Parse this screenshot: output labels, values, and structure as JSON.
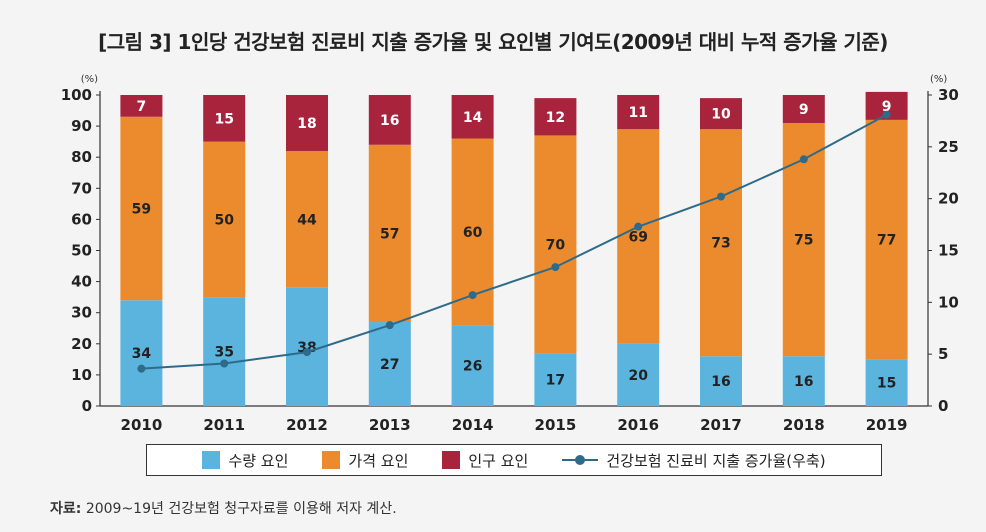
{
  "title": "[그림 3] 1인당 건강보험 진료비 지출 증가율 및 요인별 기여도(2009년 대비 누적 증가율 기준)",
  "chart_data": {
    "type": "bar",
    "stacked": true,
    "categories": [
      "2010",
      "2011",
      "2012",
      "2013",
      "2014",
      "2015",
      "2016",
      "2017",
      "2018",
      "2019"
    ],
    "series": [
      {
        "name": "수량 요인",
        "color": "#5bb4de",
        "values": [
          34,
          35,
          38,
          27,
          26,
          17,
          20,
          16,
          16,
          15
        ]
      },
      {
        "name": "가격 요인",
        "color": "#ec8b2e",
        "values": [
          59,
          50,
          44,
          57,
          60,
          70,
          69,
          73,
          75,
          77
        ]
      },
      {
        "name": "인구 요인",
        "color": "#a8243c",
        "values": [
          7,
          15,
          18,
          16,
          14,
          12,
          11,
          10,
          9,
          9
        ]
      }
    ],
    "line_series": {
      "name": "건강보험 진료비 지출 증가율(우축)",
      "color": "#2e6b8a",
      "axis": "right",
      "values": [
        3.6,
        4.1,
        5.2,
        7.8,
        10.7,
        13.4,
        17.3,
        20.2,
        23.8,
        28.1
      ]
    },
    "left_axis": {
      "unit": "(%)",
      "ylim": [
        0,
        100
      ],
      "ticks": [
        0,
        10,
        20,
        30,
        40,
        50,
        60,
        70,
        80,
        90,
        100
      ]
    },
    "right_axis": {
      "unit": "(%)",
      "ylim": [
        0,
        30
      ],
      "ticks": [
        0,
        5,
        10,
        15,
        20,
        25,
        30
      ]
    }
  },
  "legend": {
    "quantity": "수량 요인",
    "price": "가격 요인",
    "population": "인구 요인",
    "line": "건강보험 진료비 지출 증가율(우축)"
  },
  "source": {
    "label": "자료:",
    "text": "2009~19년 건강보험 청구자료를 이용해 저자 계산."
  }
}
